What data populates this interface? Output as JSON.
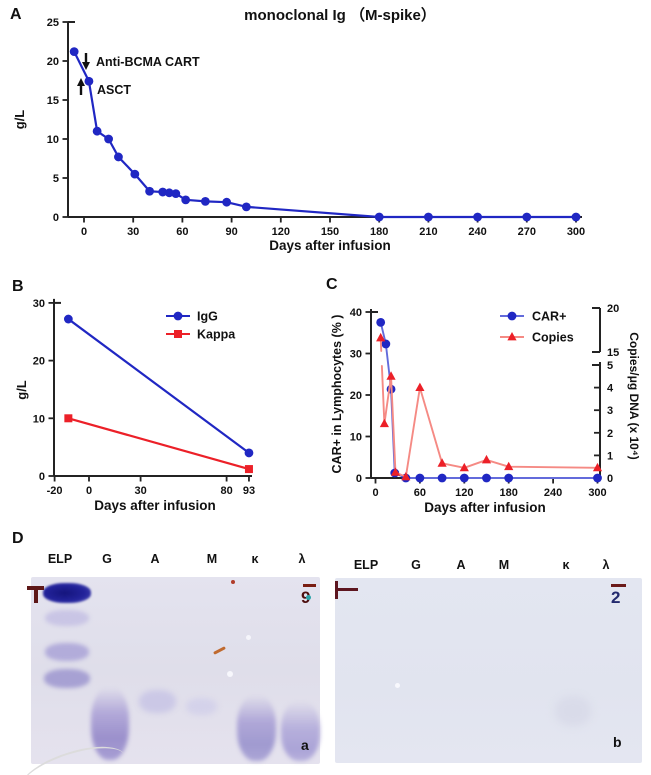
{
  "figure_labels": {
    "a": "A",
    "b": "B",
    "c": "C",
    "d": "D"
  },
  "colors": {
    "blue": "#2027c3",
    "blue_line": "#3a43cf",
    "car_line_blue": "#6togg36bdb",
    "red": "#ec2028",
    "salmon_line": "#f58a84",
    "axis": "#232323",
    "text": "#111111"
  },
  "chart_data": [
    {
      "panel": "A",
      "type": "line",
      "title": "monoclonal Ig （M-spike）",
      "xlabel": "Days after infusion",
      "ylabel": "g/L",
      "xlim": [
        -15,
        305
      ],
      "ylim": [
        0,
        25
      ],
      "xticks": [
        0,
        30,
        60,
        90,
        120,
        150,
        180,
        210,
        240,
        270,
        300
      ],
      "yticks": [
        0,
        5,
        10,
        15,
        20,
        25
      ],
      "grid": false,
      "legend_position": "none",
      "annotations": [
        {
          "text": "Anti-BCMA CART",
          "arrow": "down",
          "x": 0,
          "y": 20.4
        },
        {
          "text": "ASCT",
          "arrow": "up",
          "x": -3,
          "y": 17.0
        }
      ],
      "series": [
        {
          "name": "monoclonal Ig (M-spike)",
          "marker": "circle",
          "color": "#2027c3",
          "x": [
            -6,
            3,
            8,
            15,
            21,
            31,
            40,
            48,
            52,
            56,
            62,
            74,
            87,
            99,
            180,
            210,
            240,
            270,
            300
          ],
          "y": [
            21.2,
            17.4,
            11.0,
            10.0,
            7.7,
            5.5,
            3.3,
            3.2,
            3.1,
            3.0,
            2.2,
            2.0,
            1.9,
            1.3,
            0,
            0,
            0,
            0,
            0
          ]
        }
      ]
    },
    {
      "panel": "B",
      "type": "line",
      "title": "",
      "xlabel": "Days after infusion",
      "ylabel": "g/L",
      "xlim": [
        -20,
        95
      ],
      "ylim": [
        0,
        30
      ],
      "xticks": [
        -20,
        0,
        30,
        80,
        93
      ],
      "yticks": [
        0,
        10,
        20,
        30
      ],
      "grid": false,
      "legend_position": "upper right",
      "legend": [
        "IgG",
        "Kappa"
      ],
      "series": [
        {
          "name": "IgG",
          "marker": "circle",
          "color": "#2027c3",
          "x": [
            -12,
            93
          ],
          "y": [
            27.2,
            4.0
          ]
        },
        {
          "name": "Kappa",
          "marker": "square",
          "color": "#ec2028",
          "x": [
            -12,
            93
          ],
          "y": [
            10.0,
            1.2
          ]
        }
      ]
    },
    {
      "panel": "C",
      "type": "line",
      "dual_axis": true,
      "title": "",
      "xlabel": "Days after infusion",
      "ylabel_left": "CAR+ in Lymphocytes (% )",
      "ylabel_right": "Copies/μg DNA (x 10⁴)",
      "xlim": [
        0,
        300
      ],
      "ylim_left": [
        0,
        40
      ],
      "right_axis_break": {
        "lower": [
          0,
          5
        ],
        "upper": [
          15,
          20
        ]
      },
      "xticks": [
        0,
        60,
        120,
        180,
        240,
        300
      ],
      "yticks_left": [
        0,
        10,
        20,
        30,
        40
      ],
      "yticks_right_lower": [
        0,
        1,
        2,
        3,
        4,
        5
      ],
      "yticks_right_upper": [
        15,
        20
      ],
      "grid": false,
      "legend_position": "upper right",
      "legend": [
        "CAR+",
        "Copies"
      ],
      "series": [
        {
          "name": "CAR+",
          "axis": "left",
          "marker": "circle",
          "color": "#2027c3",
          "line_color": "#636bdb",
          "x": [
            7,
            14,
            21,
            26,
            41,
            60,
            90,
            120,
            150,
            180,
            300
          ],
          "y": [
            37.5,
            32.3,
            21.4,
            1.2,
            0,
            0,
            0,
            0,
            0,
            0,
            0
          ]
        },
        {
          "name": "Copies",
          "axis": "right",
          "marker": "triangle",
          "color": "#ec2028",
          "line_color": "#f58a84",
          "x": [
            7,
            12,
            21,
            27,
            41,
            60,
            90,
            120,
            150,
            180,
            300
          ],
          "y": [
            16.6,
            2.4,
            4.5,
            0.25,
            0.05,
            4.0,
            0.65,
            0.45,
            0.8,
            0.5,
            0.45
          ]
        }
      ]
    }
  ],
  "panel_d": {
    "lane_labels": [
      "ELP",
      "G",
      "A",
      "M",
      "κ",
      "λ"
    ],
    "gel_a": {
      "corner_label": "a",
      "handwritten_mark": "9"
    },
    "gel_b": {
      "corner_label": "b",
      "handwritten_mark": "2"
    }
  }
}
